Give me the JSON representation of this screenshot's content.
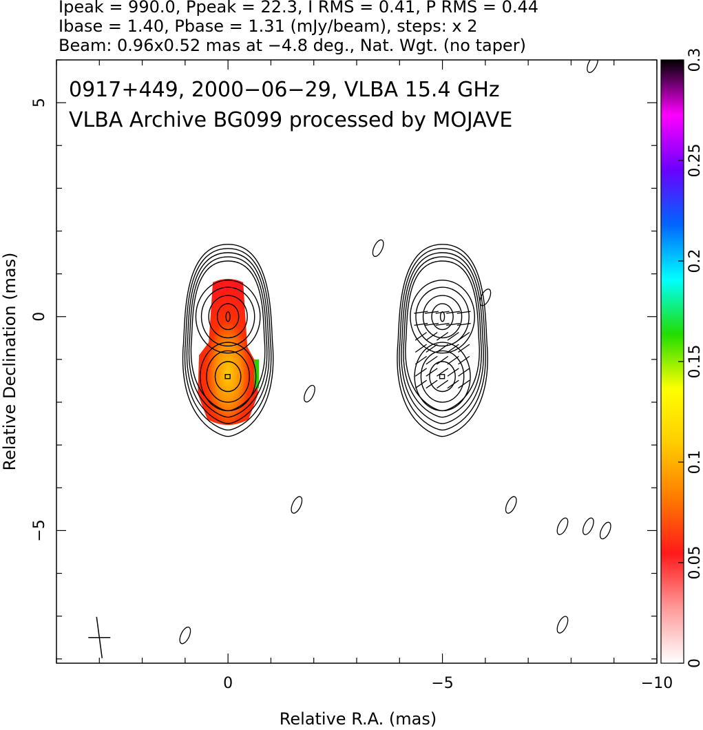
{
  "header": {
    "line1": "Ipeak = 990.0, Ppeak = 22.3, I RMS = 0.41, P RMS = 0.44",
    "line2": "Ibase = 1.40, Pbase = 1.31 (mJy/beam), steps: x 2",
    "line3": "Beam: 0.96x0.52 mas at −4.8 deg., Nat. Wgt. (no taper)"
  },
  "chart_data": {
    "type": "heatmap",
    "title": "0917+449, 2000−06−29, VLBA 15.4 GHz",
    "subtitle": "VLBA Archive BG099 processed by MOJAVE",
    "xlabel": "Relative R.A. (mas)",
    "ylabel": "Relative Declination (mas)",
    "xlim": [
      4,
      -10
    ],
    "ylim": [
      -8.1,
      6
    ],
    "x_ticks": [
      {
        "value": 0,
        "label": "0"
      },
      {
        "value": -5,
        "label": "−5"
      },
      {
        "value": -10,
        "label": "−10"
      }
    ],
    "y_ticks": [
      {
        "value": 5,
        "label": "5"
      },
      {
        "value": 0,
        "label": "0"
      },
      {
        "value": -5,
        "label": "−5"
      }
    ],
    "colorbar": {
      "range": [
        0,
        0.3
      ],
      "ticks": [
        {
          "value": 0,
          "label": "0"
        },
        {
          "value": 0.05,
          "label": "0.05"
        },
        {
          "value": 0.1,
          "label": "0.1"
        },
        {
          "value": 0.15,
          "label": "0.15"
        },
        {
          "value": 0.2,
          "label": "0.2"
        },
        {
          "value": 0.25,
          "label": "0.25"
        },
        {
          "value": 0.3,
          "label": "0.3"
        }
      ],
      "stops": [
        "#ffffff",
        "#ff9a9a",
        "#ff1a1a",
        "#ff7a00",
        "#ffcc00",
        "#ffff00",
        "#22dd00",
        "#00ffff",
        "#0066ff",
        "#6a00ff",
        "#ff00ff",
        "#000000"
      ]
    },
    "fractional_polarization_map": {
      "region_center": [
        0,
        -0.7
      ],
      "typical_values": [
        0.05,
        0.1,
        0.14
      ]
    },
    "left_panel": {
      "component": "total intensity contours with fractional polarization color",
      "core": [
        0,
        0
      ],
      "jet_knot": [
        0,
        -1.4
      ],
      "contours_core": [
        [
          0.25,
          0.55
        ],
        [
          0.45,
          0.9
        ],
        [
          0.62,
          1.25
        ],
        [
          0.75,
          1.55
        ]
      ],
      "contours_outer": [
        [
          0.9,
          2.0
        ],
        [
          0.95,
          2.15
        ],
        [
          1.0,
          2.3
        ],
        [
          1.05,
          2.45
        ],
        [
          1.1,
          2.6
        ]
      ]
    },
    "right_panel": {
      "component": "polarized intensity contours with EVPA ticks",
      "offset_ra": -5,
      "core": [
        -5,
        0
      ],
      "jet_knot": [
        -5,
        -1.4
      ]
    },
    "beam": {
      "major": 0.96,
      "minor": 0.52,
      "pa": -4.8,
      "position": [
        3,
        -7.5
      ]
    },
    "noise_islands": [
      [
        -1.6,
        -4.4
      ],
      [
        -6.6,
        -4.4
      ],
      [
        -7.8,
        -4.9
      ],
      [
        -8.8,
        -5.0
      ],
      [
        -8.4,
        -4.9
      ],
      [
        -3.5,
        1.6
      ],
      [
        1.0,
        -7.45
      ],
      [
        -7.8,
        -7.2
      ],
      [
        -8.5,
        5.9
      ],
      [
        -6.0,
        0.45
      ],
      [
        -1.9,
        -1.8
      ]
    ]
  }
}
